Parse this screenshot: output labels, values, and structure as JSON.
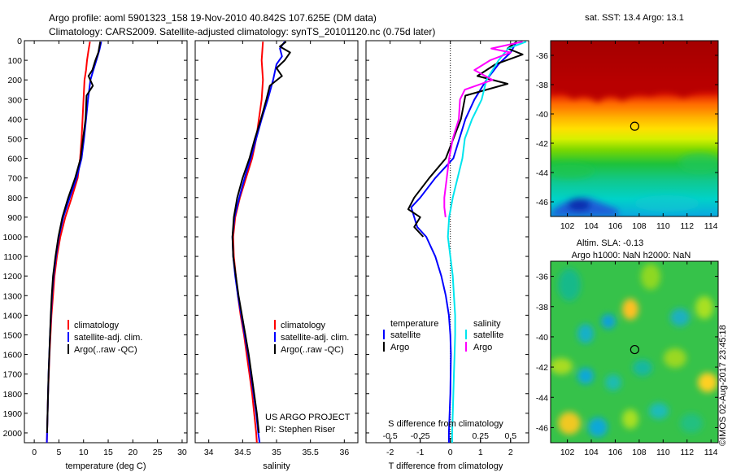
{
  "header": {
    "title_line1": "Argo profile: aoml 5901323_158 19-Nov-2010 40.842S 107.625E (DM data)",
    "title_line2": "Climatology: CARS2009. Satellite-adjusted climatology: synTS_20101120.nc (0.75d later)"
  },
  "project_note": {
    "line1": "US ARGO PROJECT",
    "line2": "PI: Stephen Riser"
  },
  "watermark": "©IMOS 02-Aug-2017 23:45:18",
  "colors": {
    "red": "#ff0000",
    "blue": "#0000ff",
    "black": "#000000",
    "cyan": "#00e5ee",
    "magenta": "#ff00ff"
  },
  "chart_data": [
    {
      "id": "temperature",
      "type": "line",
      "xlabel": "temperature (deg C)",
      "xlim": [
        -2,
        31
      ],
      "ylim": [
        0,
        2050
      ],
      "y_reversed": true,
      "xticks": [
        0,
        5,
        10,
        15,
        20,
        25,
        30
      ],
      "yticks": [
        0,
        100,
        200,
        300,
        400,
        500,
        600,
        700,
        800,
        900,
        1000,
        1100,
        1200,
        1300,
        1400,
        1500,
        1600,
        1700,
        1800,
        1900,
        2000
      ],
      "legend": {
        "placement": "lower-left",
        "entries": [
          "climatology",
          "satellite-adj. clim.",
          "Argo(..raw -QC)"
        ]
      },
      "series": [
        {
          "name": "climatology",
          "color": "red",
          "points": [
            [
              11.3,
              5
            ],
            [
              11.0,
              50
            ],
            [
              10.7,
              100
            ],
            [
              10.5,
              150
            ],
            [
              10.2,
              200
            ],
            [
              10.0,
              300
            ],
            [
              9.8,
              400
            ],
            [
              9.6,
              500
            ],
            [
              9.3,
              600
            ],
            [
              8.8,
              700
            ],
            [
              7.6,
              800
            ],
            [
              6.3,
              900
            ],
            [
              5.3,
              1000
            ],
            [
              4.6,
              1100
            ],
            [
              4.1,
              1200
            ],
            [
              3.8,
              1300
            ],
            [
              3.5,
              1400
            ],
            [
              3.3,
              1500
            ],
            [
              3.1,
              1600
            ],
            [
              2.95,
              1700
            ],
            [
              2.8,
              1800
            ],
            [
              2.7,
              1900
            ],
            [
              2.6,
              2000
            ],
            [
              2.55,
              2050
            ]
          ]
        },
        {
          "name": "satellite-adj. clim.",
          "color": "blue",
          "points": [
            [
              13.6,
              5
            ],
            [
              13.2,
              50
            ],
            [
              12.6,
              100
            ],
            [
              12.0,
              150
            ],
            [
              11.4,
              200
            ],
            [
              10.9,
              300
            ],
            [
              10.5,
              400
            ],
            [
              10.1,
              500
            ],
            [
              9.6,
              600
            ],
            [
              8.6,
              700
            ],
            [
              7.2,
              800
            ],
            [
              5.9,
              900
            ],
            [
              5.0,
              1000
            ],
            [
              4.4,
              1100
            ],
            [
              3.9,
              1200
            ],
            [
              3.6,
              1300
            ],
            [
              3.4,
              1400
            ],
            [
              3.2,
              1500
            ],
            [
              3.05,
              1600
            ],
            [
              2.9,
              1700
            ],
            [
              2.8,
              1800
            ],
            [
              2.7,
              1900
            ],
            [
              2.6,
              2000
            ],
            [
              2.55,
              2050
            ]
          ]
        },
        {
          "name": "Argo(..raw -QC)",
          "color": "black",
          "points": [
            [
              13.4,
              5
            ],
            [
              13.0,
              60
            ],
            [
              12.4,
              100
            ],
            [
              11.8,
              150
            ],
            [
              11.0,
              180
            ],
            [
              11.9,
              230
            ],
            [
              10.6,
              280
            ],
            [
              10.4,
              400
            ],
            [
              9.9,
              500
            ],
            [
              9.4,
              600
            ],
            [
              8.3,
              700
            ],
            [
              6.9,
              800
            ],
            [
              5.7,
              900
            ],
            [
              4.9,
              1000
            ],
            [
              4.3,
              1100
            ],
            [
              3.8,
              1200
            ],
            [
              3.55,
              1300
            ],
            [
              3.35,
              1400
            ],
            [
              3.2,
              1500
            ],
            [
              3.05,
              1600
            ],
            [
              2.9,
              1700
            ],
            [
              2.8,
              1800
            ],
            [
              2.7,
              1900
            ],
            [
              2.6,
              2000
            ]
          ]
        }
      ]
    },
    {
      "id": "salinity",
      "type": "line",
      "xlabel": "salinity",
      "xlim": [
        33.8,
        36.2
      ],
      "ylim": [
        0,
        2050
      ],
      "y_reversed": true,
      "xticks": [
        34,
        34.5,
        35,
        35.5,
        36
      ],
      "legend": {
        "placement": "lower-right",
        "entries": [
          "climatology",
          "satellite-adj. clim.",
          "Argo(..raw -QC)"
        ]
      },
      "series": [
        {
          "name": "climatology",
          "color": "red",
          "points": [
            [
              34.8,
              5
            ],
            [
              34.78,
              100
            ],
            [
              34.8,
              200
            ],
            [
              34.78,
              300
            ],
            [
              34.74,
              400
            ],
            [
              34.7,
              500
            ],
            [
              34.64,
              600
            ],
            [
              34.55,
              700
            ],
            [
              34.46,
              800
            ],
            [
              34.39,
              900
            ],
            [
              34.36,
              1000
            ],
            [
              34.37,
              1100
            ],
            [
              34.4,
              1200
            ],
            [
              34.43,
              1300
            ],
            [
              34.47,
              1400
            ],
            [
              34.52,
              1500
            ],
            [
              34.56,
              1600
            ],
            [
              34.6,
              1700
            ],
            [
              34.64,
              1800
            ],
            [
              34.67,
              1900
            ],
            [
              34.7,
              2000
            ],
            [
              34.71,
              2050
            ]
          ]
        },
        {
          "name": "satellite-adj. clim.",
          "color": "blue",
          "points": [
            [
              35.12,
              5
            ],
            [
              35.05,
              40
            ],
            [
              35.08,
              80
            ],
            [
              35.0,
              120
            ],
            [
              34.95,
              200
            ],
            [
              34.87,
              300
            ],
            [
              34.78,
              400
            ],
            [
              34.7,
              500
            ],
            [
              34.62,
              600
            ],
            [
              34.53,
              700
            ],
            [
              34.45,
              800
            ],
            [
              34.38,
              900
            ],
            [
              34.35,
              1000
            ],
            [
              34.36,
              1100
            ],
            [
              34.39,
              1200
            ],
            [
              34.43,
              1300
            ],
            [
              34.48,
              1400
            ],
            [
              34.53,
              1500
            ],
            [
              34.58,
              1600
            ],
            [
              34.62,
              1700
            ],
            [
              34.66,
              1800
            ],
            [
              34.7,
              1900
            ],
            [
              34.73,
              2000
            ],
            [
              34.75,
              2050
            ]
          ]
        },
        {
          "name": "Argo(..raw -QC)",
          "color": "black",
          "points": [
            [
              35.14,
              5
            ],
            [
              35.05,
              30
            ],
            [
              35.2,
              60
            ],
            [
              35.12,
              100
            ],
            [
              35.0,
              140
            ],
            [
              35.08,
              180
            ],
            [
              34.9,
              230
            ],
            [
              34.85,
              300
            ],
            [
              34.77,
              400
            ],
            [
              34.68,
              500
            ],
            [
              34.6,
              600
            ],
            [
              34.5,
              700
            ],
            [
              34.42,
              800
            ],
            [
              34.37,
              900
            ],
            [
              34.35,
              1000
            ],
            [
              34.36,
              1100
            ],
            [
              34.4,
              1200
            ],
            [
              34.44,
              1300
            ],
            [
              34.49,
              1400
            ],
            [
              34.54,
              1500
            ],
            [
              34.59,
              1600
            ],
            [
              34.63,
              1700
            ],
            [
              34.67,
              1800
            ],
            [
              34.71,
              1900
            ],
            [
              34.74,
              2000
            ]
          ]
        }
      ]
    },
    {
      "id": "difference",
      "type": "line",
      "xlabel": "T difference from climatology",
      "xlabel_top": "S difference from climatology",
      "xlim": [
        -2.8,
        2.6
      ],
      "top_xlim": [
        -0.7,
        0.65
      ],
      "ylim": [
        0,
        2050
      ],
      "y_reversed": true,
      "xticks": [
        -2,
        -1,
        0,
        1,
        2
      ],
      "top_xticks": [
        -0.5,
        -0.25,
        0,
        0.25,
        0.5
      ],
      "legend": {
        "placement": "lower",
        "temperature_title": "temperature",
        "salinity_title": "salinity",
        "entries": [
          "satellite",
          "Argo",
          "satellite",
          "Argo"
        ]
      },
      "series": [
        {
          "name": "satellite",
          "group": "temperature",
          "color": "blue",
          "points": [
            [
              2.2,
              5
            ],
            [
              2.0,
              60
            ],
            [
              1.6,
              120
            ],
            [
              1.2,
              200
            ],
            [
              0.8,
              300
            ],
            [
              0.5,
              400
            ],
            [
              0.3,
              500
            ],
            [
              0.1,
              600
            ],
            [
              -0.5,
              700
            ],
            [
              -1.0,
              800
            ],
            [
              -1.3,
              850
            ],
            [
              -1.1,
              950
            ],
            [
              -0.8,
              1000
            ],
            [
              -0.5,
              1100
            ],
            [
              -0.3,
              1200
            ],
            [
              -0.15,
              1300
            ],
            [
              -0.05,
              1400
            ],
            [
              0.0,
              1500
            ],
            [
              0.02,
              1600
            ],
            [
              0.0,
              1800
            ],
            [
              -0.05,
              2000
            ],
            [
              -0.05,
              2050
            ]
          ]
        },
        {
          "name": "Argo",
          "group": "temperature",
          "color": "black",
          "points": [
            [
              2.2,
              5
            ],
            [
              1.9,
              40
            ],
            [
              2.4,
              70
            ],
            [
              1.5,
              120
            ],
            [
              0.9,
              180
            ],
            [
              1.9,
              220
            ],
            [
              0.5,
              280
            ],
            [
              0.35,
              400
            ],
            [
              0.1,
              500
            ],
            [
              -0.15,
              600
            ],
            [
              -0.7,
              700
            ],
            [
              -1.2,
              800
            ],
            [
              -1.4,
              860
            ],
            [
              -1.0,
              900
            ],
            [
              -1.2,
              950
            ],
            [
              -0.9,
              1000
            ]
          ]
        },
        {
          "name": "satellite",
          "group": "salinity",
          "color": "cyan",
          "top_points": [
            [
              0.63,
              5
            ],
            [
              0.48,
              40
            ],
            [
              0.4,
              100
            ],
            [
              0.35,
              150
            ],
            [
              0.3,
              200
            ],
            [
              0.26,
              300
            ],
            [
              0.18,
              400
            ],
            [
              0.12,
              500
            ],
            [
              0.1,
              600
            ],
            [
              0.06,
              700
            ],
            [
              0.02,
              800
            ],
            [
              -0.01,
              900
            ],
            [
              -0.02,
              1000
            ],
            [
              0.0,
              1100
            ],
            [
              0.02,
              1200
            ],
            [
              0.03,
              1300
            ],
            [
              0.04,
              1400
            ],
            [
              0.04,
              1500
            ],
            [
              0.035,
              1600
            ],
            [
              0.03,
              1700
            ],
            [
              0.025,
              1800
            ],
            [
              0.02,
              1900
            ],
            [
              0.015,
              2000
            ],
            [
              0.015,
              2050
            ]
          ]
        },
        {
          "name": "Argo",
          "group": "salinity",
          "color": "magenta",
          "top_points": [
            [
              0.6,
              5
            ],
            [
              0.34,
              40
            ],
            [
              0.5,
              60
            ],
            [
              0.33,
              100
            ],
            [
              0.2,
              150
            ],
            [
              0.35,
              200
            ],
            [
              0.12,
              250
            ],
            [
              0.08,
              300
            ],
            [
              0.07,
              400
            ],
            [
              0.02,
              500
            ],
            [
              -0.01,
              600
            ],
            [
              -0.03,
              700
            ],
            [
              -0.05,
              800
            ],
            [
              -0.05,
              850
            ],
            [
              -0.04,
              900
            ]
          ]
        }
      ]
    }
  ],
  "maps": [
    {
      "id": "sst",
      "title": "sat. SST: 13.4  Argo: 13.1",
      "xticks": [
        102,
        104,
        106,
        108,
        110,
        112,
        114
      ],
      "yticks": [
        -36,
        -38,
        -40,
        -42,
        -44,
        -46
      ],
      "xlim": [
        100.6,
        114.6
      ],
      "ylim": [
        -47,
        -35
      ],
      "marker": [
        107.625,
        -40.842
      ]
    },
    {
      "id": "sla",
      "title_line1": "Altim. SLA: -0.13",
      "title_line2": "Argo h1000: NaN h2000: NaN",
      "xticks": [
        102,
        104,
        106,
        108,
        110,
        112,
        114
      ],
      "yticks": [
        -36,
        -38,
        -40,
        -42,
        -44,
        -46
      ],
      "xlim": [
        100.6,
        114.6
      ],
      "ylim": [
        -47,
        -35
      ],
      "marker": [
        107.625,
        -40.842
      ]
    }
  ]
}
